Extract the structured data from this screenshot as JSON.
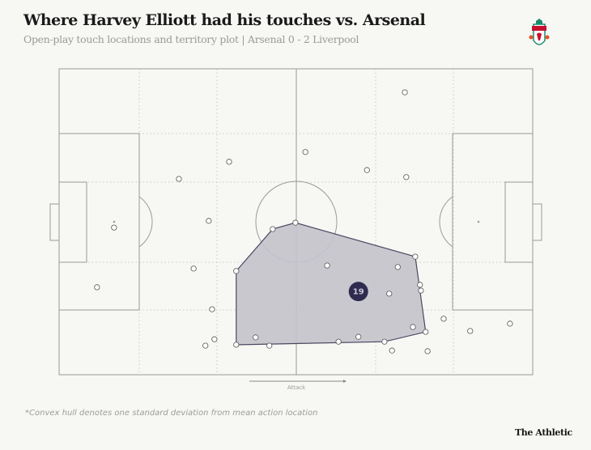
{
  "header": {
    "title": "Where Harvey Elliott had his touches vs. Arsenal",
    "subtitle": "Open-play touch locations and territory plot |  Arsenal 0 - 2 Liverpool",
    "logo": "Liverpool FC crest"
  },
  "footer": {
    "footnote": "*Convex hull denotes one standard deviation from mean action location",
    "brand": "The Athletic"
  },
  "chart_data": {
    "type": "scatter",
    "pitch": {
      "x_range": [
        0,
        100
      ],
      "y_range": [
        0,
        100
      ],
      "attack_direction": "left-to-right",
      "attack_label": "Attack"
    },
    "colors": {
      "hull_fill": "#c4c2cb",
      "hull_stroke": "#4a4860",
      "mean_marker": "#2e2b4f",
      "touch_fill": "#ffffff",
      "touch_stroke": "#555555"
    },
    "touches": [
      [
        73.0,
        7.7
      ],
      [
        52.0,
        27.2
      ],
      [
        35.9,
        30.4
      ],
      [
        65.0,
        33.1
      ],
      [
        73.3,
        35.4
      ],
      [
        25.3,
        36.0
      ],
      [
        31.6,
        49.7
      ],
      [
        11.6,
        51.9
      ],
      [
        49.9,
        50.3
      ],
      [
        45.1,
        52.4
      ],
      [
        37.4,
        66.1
      ],
      [
        56.6,
        64.3
      ],
      [
        71.5,
        64.8
      ],
      [
        75.2,
        61.4
      ],
      [
        28.4,
        65.3
      ],
      [
        8.0,
        71.4
      ],
      [
        76.2,
        70.6
      ],
      [
        76.4,
        72.5
      ],
      [
        69.7,
        73.5
      ],
      [
        32.3,
        78.6
      ],
      [
        81.2,
        81.7
      ],
      [
        86.8,
        85.7
      ],
      [
        95.2,
        83.3
      ],
      [
        74.7,
        84.4
      ],
      [
        77.4,
        86.0
      ],
      [
        41.5,
        87.8
      ],
      [
        32.8,
        88.4
      ],
      [
        30.9,
        90.5
      ],
      [
        37.4,
        90.2
      ],
      [
        44.4,
        90.5
      ],
      [
        59.0,
        89.2
      ],
      [
        63.2,
        87.6
      ],
      [
        68.7,
        89.2
      ],
      [
        70.3,
        92.1
      ],
      [
        77.8,
        92.3
      ]
    ],
    "hull": [
      [
        37.4,
        66.1
      ],
      [
        45.1,
        52.4
      ],
      [
        49.9,
        50.3
      ],
      [
        75.2,
        61.4
      ],
      [
        77.4,
        86.0
      ],
      [
        68.7,
        89.2
      ],
      [
        37.4,
        90.2
      ]
    ],
    "mean": {
      "x": 63.2,
      "y": 72.8,
      "label": "19"
    }
  }
}
